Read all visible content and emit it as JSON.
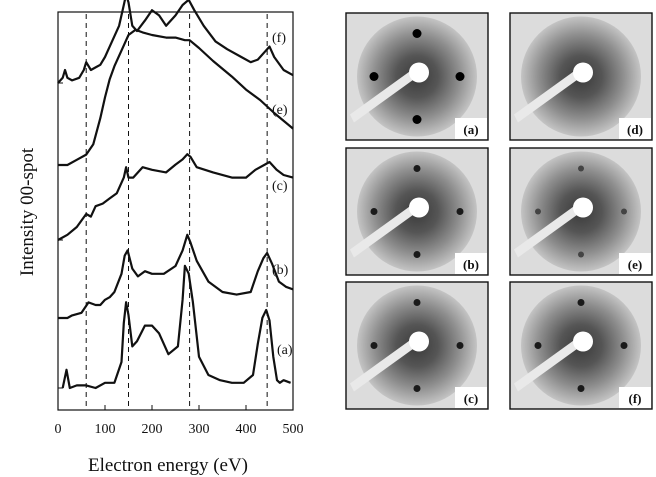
{
  "chart_data": {
    "type": "line",
    "xlabel": "Electron energy (eV)",
    "ylabel": "Intensity 00-spot",
    "xlim": [
      0,
      500
    ],
    "x_ticks": [
      0,
      100,
      200,
      300,
      400,
      500
    ],
    "x_tick_labels": [
      "0",
      "100",
      "200",
      "300",
      "400",
      "500"
    ],
    "reference_lines_x": [
      60,
      150,
      280,
      445
    ],
    "grid": false,
    "series": [
      {
        "name": "(a)",
        "baseline": 0.0,
        "x": [
          10,
          18,
          25,
          40,
          60,
          80,
          100,
          120,
          135,
          140,
          145,
          150,
          158,
          168,
          185,
          200,
          215,
          235,
          255,
          265,
          270,
          278,
          287,
          300,
          320,
          345,
          370,
          395,
          415,
          425,
          435,
          443,
          450,
          458,
          466,
          472,
          480,
          495
        ],
        "y": [
          0.0,
          0.07,
          0.0,
          0.01,
          0.01,
          0.0,
          0.02,
          0.02,
          0.1,
          0.25,
          0.33,
          0.28,
          0.16,
          0.18,
          0.24,
          0.24,
          0.21,
          0.13,
          0.16,
          0.34,
          0.47,
          0.44,
          0.33,
          0.12,
          0.05,
          0.03,
          0.02,
          0.02,
          0.05,
          0.17,
          0.27,
          0.3,
          0.26,
          0.12,
          0.03,
          0.02,
          0.03,
          0.02
        ]
      },
      {
        "name": "(b)",
        "baseline": 0.0,
        "x": [
          0,
          10,
          20,
          30,
          50,
          65,
          80,
          90,
          100,
          110,
          120,
          135,
          142,
          148,
          158,
          170,
          185,
          200,
          225,
          250,
          265,
          275,
          282,
          295,
          320,
          350,
          380,
          410,
          425,
          437,
          445,
          455,
          470,
          485,
          500
        ],
        "y": [
          0.0,
          0.0,
          0.0,
          0.01,
          0.02,
          0.06,
          0.05,
          0.05,
          0.07,
          0.08,
          0.1,
          0.17,
          0.24,
          0.26,
          0.19,
          0.16,
          0.18,
          0.17,
          0.17,
          0.2,
          0.26,
          0.32,
          0.29,
          0.22,
          0.14,
          0.1,
          0.09,
          0.1,
          0.18,
          0.23,
          0.25,
          0.21,
          0.14,
          0.12,
          0.11
        ]
      },
      {
        "name": "(c)",
        "baseline": 0.0,
        "x": [
          0,
          20,
          40,
          60,
          70,
          80,
          95,
          110,
          125,
          140,
          145,
          150,
          160,
          180,
          200,
          230,
          250,
          265,
          275,
          282,
          295,
          330,
          370,
          400,
          420,
          440,
          450,
          465,
          480,
          500
        ],
        "y": [
          0.0,
          0.02,
          0.05,
          0.1,
          0.09,
          0.13,
          0.14,
          0.16,
          0.18,
          0.24,
          0.28,
          0.24,
          0.24,
          0.28,
          0.27,
          0.26,
          0.29,
          0.31,
          0.33,
          0.32,
          0.28,
          0.26,
          0.24,
          0.24,
          0.27,
          0.29,
          0.3,
          0.27,
          0.25,
          0.24
        ]
      },
      {
        "name": "(e)",
        "baseline": 0.0,
        "x": [
          0,
          20,
          40,
          60,
          75,
          90,
          100,
          110,
          120,
          130,
          140,
          150,
          165,
          180,
          200,
          230,
          250,
          270,
          280,
          300,
          330,
          370,
          400,
          430,
          460,
          500
        ],
        "y": [
          0.0,
          0.0,
          0.02,
          0.04,
          0.08,
          0.18,
          0.26,
          0.33,
          0.38,
          0.42,
          0.46,
          0.5,
          0.52,
          0.51,
          0.5,
          0.49,
          0.49,
          0.48,
          0.48,
          0.45,
          0.4,
          0.34,
          0.29,
          0.25,
          0.2,
          0.14
        ]
      },
      {
        "name": "(f)",
        "baseline": 0.0,
        "x": [
          0,
          10,
          15,
          20,
          30,
          45,
          55,
          60,
          70,
          80,
          90,
          100,
          110,
          120,
          130,
          140,
          145,
          150,
          158,
          168,
          185,
          200,
          215,
          230,
          250,
          265,
          278,
          290,
          310,
          335,
          360,
          390,
          410,
          425,
          440,
          450,
          460,
          480,
          500
        ],
        "y": [
          0.0,
          0.02,
          0.05,
          0.02,
          0.01,
          0.02,
          0.05,
          0.08,
          0.05,
          0.06,
          0.07,
          0.1,
          0.14,
          0.18,
          0.22,
          0.3,
          0.34,
          0.31,
          0.22,
          0.2,
          0.24,
          0.28,
          0.26,
          0.22,
          0.26,
          0.3,
          0.32,
          0.28,
          0.22,
          0.16,
          0.13,
          0.1,
          0.08,
          0.09,
          0.12,
          0.14,
          0.1,
          0.05,
          0.03
        ]
      }
    ]
  },
  "leed_panels": [
    {
      "label": "(a)",
      "spots": "strong"
    },
    {
      "label": "(d)",
      "spots": "none"
    },
    {
      "label": "(b)",
      "spots": "medium"
    },
    {
      "label": "(e)",
      "spots": "faint"
    },
    {
      "label": "(c)",
      "spots": "medium"
    },
    {
      "label": "(f)",
      "spots": "medium"
    }
  ]
}
